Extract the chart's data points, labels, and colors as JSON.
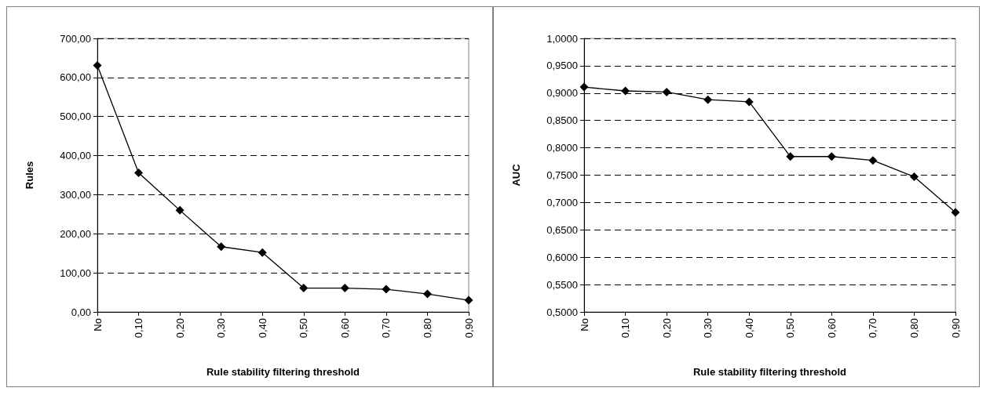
{
  "chart_data": [
    {
      "type": "line",
      "xlabel": "Rule stability filtering threshold",
      "ylabel": "Rules",
      "categories": [
        "No",
        "0,10",
        "0,20",
        "0,30",
        "0,40",
        "0,50",
        "0,60",
        "0,70",
        "0,80",
        "0,90"
      ],
      "series": [
        {
          "color": "#000000",
          "values": [
            631,
            356,
            260,
            167,
            152,
            61,
            61,
            58,
            46,
            30
          ]
        }
      ],
      "ylim": [
        0,
        700
      ],
      "yticks": [
        {
          "value": 0,
          "label": "0,00"
        },
        {
          "value": 100,
          "label": "100,00"
        },
        {
          "value": 200,
          "label": "200,00"
        },
        {
          "value": 300,
          "label": "300,00"
        },
        {
          "value": 400,
          "label": "400,00"
        },
        {
          "value": 500,
          "label": "500,00"
        },
        {
          "value": 600,
          "label": "600,00"
        },
        {
          "value": 700,
          "label": "700,00"
        }
      ],
      "grid": "y",
      "marker": "diamond",
      "line_style": "solid"
    },
    {
      "type": "line",
      "xlabel": "Rule stability filtering threshold",
      "ylabel": "AUC",
      "categories": [
        "No",
        "0,10",
        "0,20",
        "0,30",
        "0,40",
        "0,50",
        "0,60",
        "0,70",
        "0,80",
        "0,90"
      ],
      "series": [
        {
          "color": "#000000",
          "values": [
            0.911,
            0.904,
            0.902,
            0.888,
            0.884,
            0.784,
            0.784,
            0.777,
            0.747,
            0.682
          ]
        }
      ],
      "ylim": [
        0.5,
        1.0
      ],
      "yticks": [
        {
          "value": 0.5,
          "label": "0,5000"
        },
        {
          "value": 0.55,
          "label": "0,5500"
        },
        {
          "value": 0.6,
          "label": "0,6000"
        },
        {
          "value": 0.65,
          "label": "0,6500"
        },
        {
          "value": 0.7,
          "label": "0,7000"
        },
        {
          "value": 0.75,
          "label": "0,7500"
        },
        {
          "value": 0.8,
          "label": "0,8000"
        },
        {
          "value": 0.85,
          "label": "0,8500"
        },
        {
          "value": 0.9,
          "label": "0,9000"
        },
        {
          "value": 0.95,
          "label": "0,9500"
        },
        {
          "value": 1.0,
          "label": "1,0000"
        }
      ],
      "grid": "y",
      "marker": "diamond",
      "line_style": "solid"
    }
  ]
}
